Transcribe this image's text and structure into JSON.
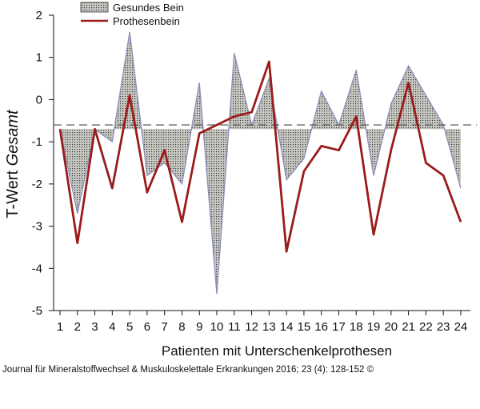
{
  "chart_data": {
    "type": "area",
    "xlabel": "Patienten mit Unterschenkelprothesen",
    "ylabel": "T-Wert",
    "ylabel_italic": "Gesamt",
    "ylim": [
      -5,
      2
    ],
    "yticks": [
      2,
      1,
      0,
      -1,
      -2,
      -3,
      -4,
      -5
    ],
    "categories": [
      "1",
      "2",
      "3",
      "4",
      "5",
      "6",
      "7",
      "8",
      "9",
      "10",
      "11",
      "12",
      "13",
      "14",
      "15",
      "16",
      "17",
      "18",
      "19",
      "20",
      "21",
      "22",
      "23",
      "24"
    ],
    "reference_line": -0.6,
    "legend_position": "top-center",
    "series": [
      {
        "name": "Gesundes Bein",
        "style": "filled area (dotted grey) relative to baseline -0.7",
        "baseline": -0.7,
        "color": "#8a8fb8",
        "fill": "#b8b8b0",
        "values": [
          -0.7,
          -2.7,
          -0.7,
          -1.0,
          1.6,
          -1.8,
          -1.5,
          -2.0,
          0.4,
          -4.6,
          1.1,
          -0.6,
          0.5,
          -1.9,
          -1.4,
          0.2,
          -0.6,
          0.7,
          -1.8,
          -0.1,
          0.8,
          0.1,
          -0.6,
          -2.1
        ]
      },
      {
        "name": "Prothesenbein",
        "style": "line",
        "color": "#9b1b1b",
        "values": [
          -0.7,
          -3.4,
          -0.7,
          -2.1,
          0.1,
          -2.2,
          -1.2,
          -2.9,
          -0.8,
          -0.6,
          -0.4,
          -0.3,
          0.9,
          -3.6,
          -1.7,
          -1.1,
          -1.2,
          -0.4,
          -3.2,
          -1.2,
          0.4,
          -1.5,
          -1.8,
          -2.9
        ]
      }
    ]
  },
  "source_note": "Journal für Mineralstoffwechsel & Muskuloskelettale Erkrankungen 2016; 23 (4): 128-152 ©"
}
